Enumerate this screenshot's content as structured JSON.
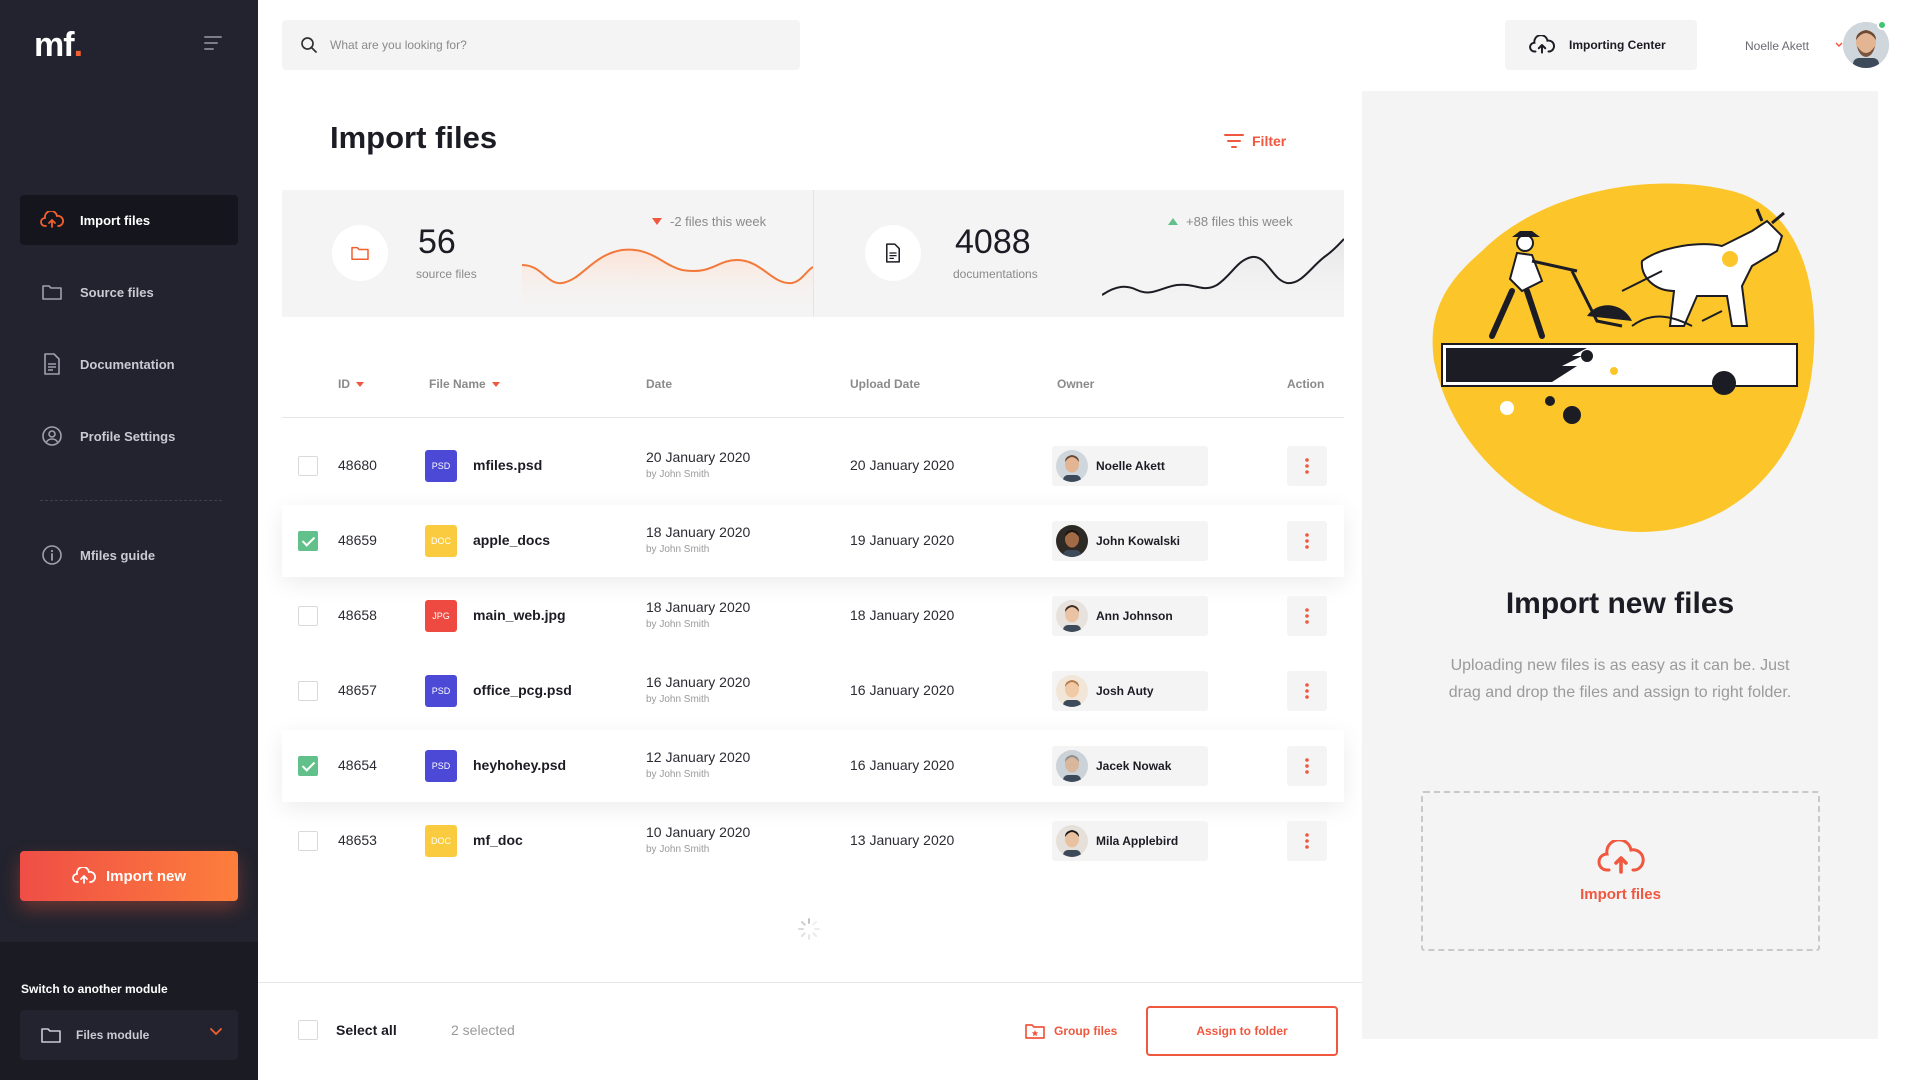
{
  "logo": {
    "text": "mf",
    "dot": "."
  },
  "sidebar": {
    "items": [
      {
        "label": "Import files",
        "icon": "cloud-upload-icon"
      },
      {
        "label": "Source files",
        "icon": "folder-icon"
      },
      {
        "label": "Documentation",
        "icon": "document-icon"
      },
      {
        "label": "Profile Settings",
        "icon": "user-circle-icon"
      },
      {
        "label": "Mfiles guide",
        "icon": "info-icon"
      }
    ],
    "import_button": "Import new",
    "module_title": "Switch to another module",
    "module_value": "Files module"
  },
  "header": {
    "search_placeholder": "What are you looking for?",
    "importing_center": "Importing Center",
    "user_name": "Noelle Akett"
  },
  "main": {
    "title": "Import files",
    "filter_label": "Filter",
    "stats": [
      {
        "value": "56",
        "label": "source files",
        "change": "-2 files this week",
        "trend": "down"
      },
      {
        "value": "4088",
        "label": "documentations",
        "change": "+88 files this week",
        "trend": "up"
      }
    ],
    "table": {
      "columns": [
        "ID",
        "File Name",
        "Date",
        "Upload Date",
        "Owner",
        "Action"
      ],
      "rows": [
        {
          "id": "48680",
          "type": "PSD",
          "name": "mfiles.psd",
          "date": "20 January 2020",
          "by": "by John Smith",
          "upload": "20 January 2020",
          "owner": "Noelle Akett",
          "checked": false
        },
        {
          "id": "48659",
          "type": "DOC",
          "name": "apple_docs",
          "date": "18 January 2020",
          "by": "by John Smith",
          "upload": "19 January 2020",
          "owner": "John Kowalski",
          "checked": true
        },
        {
          "id": "48658",
          "type": "JPG",
          "name": "main_web.jpg",
          "date": "18 January 2020",
          "by": "by John Smith",
          "upload": "18 January 2020",
          "owner": "Ann Johnson",
          "checked": false
        },
        {
          "id": "48657",
          "type": "PSD",
          "name": "office_pcg.psd",
          "date": "16 January 2020",
          "by": "by John Smith",
          "upload": "16 January 2020",
          "owner": "Josh Auty",
          "checked": false
        },
        {
          "id": "48654",
          "type": "PSD",
          "name": "heyhohey.psd",
          "date": "12 January 2020",
          "by": "by John Smith",
          "upload": "16 January 2020",
          "owner": "Jacek Nowak",
          "checked": true
        },
        {
          "id": "48653",
          "type": "DOC",
          "name": "mf_doc",
          "date": "10 January 2020",
          "by": "by John Smith",
          "upload": "13 January 2020",
          "owner": "Mila Applebird",
          "checked": false
        }
      ]
    },
    "footer": {
      "select_all": "Select all",
      "selected": "2 selected",
      "group_files": "Group files",
      "assign": "Assign to folder"
    }
  },
  "right_panel": {
    "title": "Import new files",
    "description": "Uploading new files is as easy as it can be. Just drag and drop the files and assign to right folder.",
    "dropzone_label": "Import files"
  },
  "colors": {
    "accent": "#f0573f",
    "sidebar": "#22232e",
    "psd": "#4b49d6",
    "doc": "#fbcb3f",
    "jpg": "#ee4a42",
    "yellow_blob": "#fcc62b",
    "check": "#62c08a"
  }
}
